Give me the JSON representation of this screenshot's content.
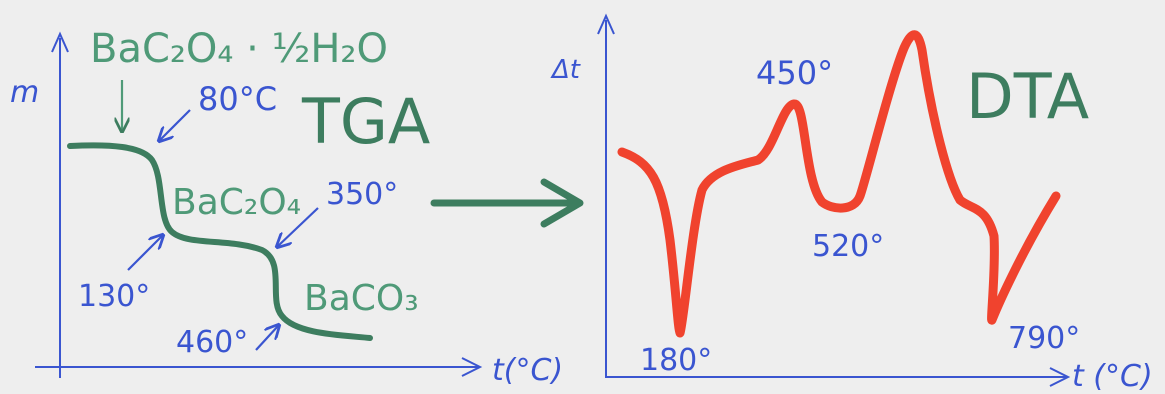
{
  "colors": {
    "blue": "#3a55d0",
    "green": "#3d7d5f",
    "red": "#f0432e",
    "background": "#eeeeee"
  },
  "tga": {
    "title": "TGA",
    "y_axis": "m",
    "x_axis": "t(°C)",
    "compounds": {
      "hydrate": "BaC₂O₄ · ½H₂O",
      "anhydrous": "BaC₂O₄",
      "carbonate": "BaCO₃"
    },
    "temperatures": {
      "t80": "80°C",
      "t130": "130°",
      "t350": "350°",
      "t460": "460°"
    }
  },
  "dta": {
    "title": "DTA",
    "y_axis": "Δt",
    "x_axis": "t (°C)",
    "peaks": {
      "p180": "180°",
      "p450": "450°",
      "p520": "520°",
      "p790": "790°"
    }
  }
}
